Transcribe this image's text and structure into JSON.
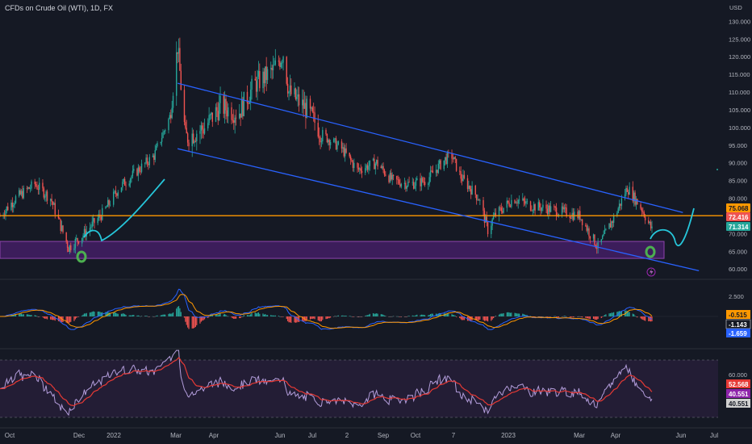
{
  "header": {
    "title": "CFDs on Crude Oil (WTI), 1D, FX",
    "currency": "USD"
  },
  "colors": {
    "background": "#151924",
    "up_candle": "#26a69a",
    "down_candle": "#ef5350",
    "channel": "#2962ff",
    "resistance": "#ff9800",
    "zone_fill": "#4a1f6e",
    "zone_border": "#8e44ad",
    "forecast": "#26c6da",
    "circle": "#4caf50",
    "macd_line": "#2962ff",
    "signal_line": "#ff9800",
    "rsi_line": "#b39ddb",
    "rsi_ma": "#e53935",
    "rsi_band": "#2a1f3d"
  },
  "chart_data": [
    {
      "type": "line",
      "name": "price-pane",
      "description_values": "approximate daily closes of WTI crude oil CFD",
      "x_dates": [
        "2021-10-01",
        "2021-10-15",
        "2021-11-01",
        "2021-11-15",
        "2021-12-01",
        "2021-12-15",
        "2022-01-01",
        "2022-01-15",
        "2022-02-01",
        "2022-02-15",
        "2022-03-01",
        "2022-03-08",
        "2022-03-15",
        "2022-04-01",
        "2022-04-15",
        "2022-05-01",
        "2022-05-15",
        "2022-06-01",
        "2022-06-10",
        "2022-06-15",
        "2022-07-01",
        "2022-07-15",
        "2022-08-01",
        "2022-08-15",
        "2022-09-01",
        "2022-09-15",
        "2022-10-01",
        "2022-10-15",
        "2022-11-01",
        "2022-11-07",
        "2022-11-15",
        "2022-12-01",
        "2022-12-09",
        "2022-12-15",
        "2023-01-01",
        "2023-01-15",
        "2023-02-01",
        "2023-02-15",
        "2023-03-01",
        "2023-03-17",
        "2023-04-01",
        "2023-04-12",
        "2023-04-25",
        "2023-05-04"
      ],
      "values": [
        75,
        80,
        84,
        80,
        66,
        70,
        76,
        83,
        88,
        92,
        103,
        123,
        97,
        100,
        106,
        104,
        112,
        116,
        121,
        110,
        105,
        98,
        94,
        88,
        90,
        85,
        84,
        85,
        91,
        92,
        86,
        80,
        71,
        75,
        80,
        78,
        77,
        76,
        75,
        66,
        75,
        83,
        77,
        71
      ],
      "y_ticks": [
        "130.000",
        "125.000",
        "120.000",
        "115.000",
        "110.000",
        "105.000",
        "100.000",
        "95.000",
        "90.000",
        "85.000",
        "80.000",
        "75.000",
        "70.000",
        "65.000",
        "60.000"
      ],
      "ylim": [
        58,
        131
      ],
      "price_labels": [
        {
          "text": "75.068",
          "value": 75.068,
          "color": "#ff9800"
        },
        {
          "text": "72.416",
          "value": 72.416,
          "color": "#ef5350"
        },
        {
          "text": "71.314",
          "value": 71.314,
          "color": "#26a69a"
        }
      ],
      "resistance_level": 75.068,
      "support_zone": [
        63.0,
        67.8
      ],
      "channel_upper": [
        {
          "x": "2022-03-08",
          "y": 112.5
        },
        {
          "x": "2023-05-10",
          "y": 75.5
        }
      ],
      "channel_lower": [
        {
          "x": "2022-03-08",
          "y": 94.0
        },
        {
          "x": "2023-05-30",
          "y": 59.5
        }
      ],
      "lightning_icon": "lightning-icon"
    },
    {
      "type": "bar",
      "name": "macd-pane",
      "y_ticks": [
        "2.500"
      ],
      "labels": [
        {
          "text": "-0.515",
          "color": "#ff9800"
        },
        {
          "text": "-1.143",
          "color": "#ffffff"
        },
        {
          "text": "-1.659",
          "color": "#2962ff"
        }
      ]
    },
    {
      "type": "line",
      "name": "rsi-pane",
      "y_ticks": [
        "60.000"
      ],
      "labels": [
        {
          "text": "52.568",
          "color": "#e53935"
        },
        {
          "text": "40.551",
          "color": "#8e24aa"
        },
        {
          "text": "40.551",
          "color": "#cfcfcf"
        }
      ]
    }
  ],
  "x_axis_labels": [
    "Oct",
    "Dec",
    "2022",
    "Mar",
    "Apr",
    "Jun",
    "Jul",
    "2",
    "Sep",
    "Oct",
    "7",
    "2023",
    "Mar",
    "Apr",
    "Jun",
    "Jul"
  ]
}
